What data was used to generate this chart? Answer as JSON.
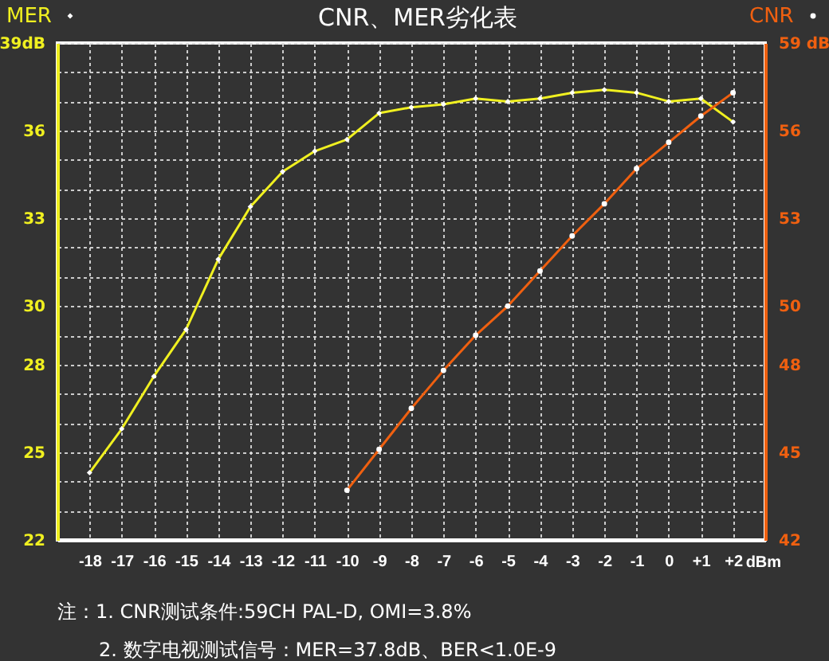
{
  "chart_data": {
    "type": "line",
    "title": "CNR、MER劣化表",
    "x": [
      -18,
      -17,
      -16,
      -15,
      -14,
      -13,
      -12,
      -11,
      -10,
      -9,
      -8,
      -7,
      -6,
      -5,
      -4,
      -3,
      -2,
      -1,
      0,
      1,
      2
    ],
    "series": [
      {
        "name": "MER",
        "color": "#f0f020",
        "axis": "y",
        "marker": "diamond",
        "values": [
          24.3,
          25.8,
          27.6,
          29.2,
          31.6,
          33.4,
          34.6,
          35.3,
          35.7,
          36.6,
          36.8,
          36.9,
          37.1,
          37.0,
          37.1,
          37.3,
          37.4,
          37.3,
          37.0,
          37.1,
          36.3
        ]
      },
      {
        "name": "CNR",
        "color": "#f06010",
        "axis": "y2",
        "marker": "circle",
        "values": [
          null,
          null,
          null,
          null,
          null,
          null,
          null,
          null,
          43.7,
          45.1,
          46.5,
          47.8,
          49.0,
          50.0,
          51.2,
          52.4,
          53.5,
          54.7,
          55.6,
          56.5,
          57.3
        ]
      }
    ],
    "xlim": [
      -19,
      3
    ],
    "xticks": [
      -18,
      -17,
      -16,
      -15,
      -14,
      -13,
      -12,
      -11,
      -10,
      -9,
      -8,
      -7,
      -6,
      -5,
      -4,
      -3,
      -2,
      -1,
      0,
      {
        "value": 1,
        "label": "+1"
      },
      {
        "value": 2,
        "label": "+2"
      }
    ],
    "xlabel": "dBm",
    "ylim": [
      22,
      39
    ],
    "yticks": [
      22,
      {
        "value": 23,
        "label": null
      },
      {
        "value": 24,
        "label": null
      },
      25,
      {
        "value": 26,
        "label": null
      },
      {
        "value": 27,
        "label": null
      },
      28,
      {
        "value": 29,
        "label": null
      },
      30,
      {
        "value": 31,
        "label": null
      },
      {
        "value": 32,
        "label": null
      },
      33,
      {
        "value": 34,
        "label": null
      },
      {
        "value": 35,
        "label": null
      },
      36,
      {
        "value": 37,
        "label": null
      },
      {
        "value": 38,
        "label": null
      },
      {
        "value": 39,
        "label": "39dB"
      }
    ],
    "y2lim": [
      42,
      59
    ],
    "y2ticks": [
      42,
      45,
      48,
      50,
      53,
      56,
      {
        "value": 59,
        "label": "59 dB"
      }
    ],
    "grid": true,
    "line_style": "solid",
    "legend": "top",
    "annotations": [
      "注：1. CNR测试条件:59CH  PAL-D, OMI=3.8%",
      "2. 数字电视测试信号：MER=37.8dB、BER<1.0E-9"
    ]
  }
}
